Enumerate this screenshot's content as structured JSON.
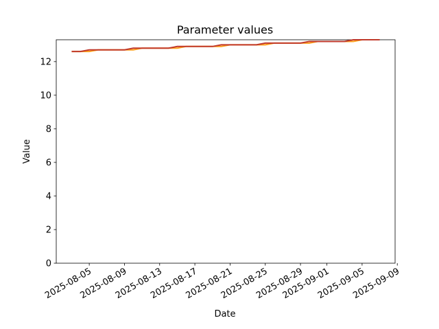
{
  "chart_data": {
    "type": "line",
    "title": "Parameter values",
    "x_label": "Date",
    "y_label": "Value",
    "x": [
      "2025-08-03",
      "2025-08-04",
      "2025-08-05",
      "2025-08-06",
      "2025-08-07",
      "2025-08-08",
      "2025-08-09",
      "2025-08-10",
      "2025-08-11",
      "2025-08-12",
      "2025-08-13",
      "2025-08-14",
      "2025-08-15",
      "2025-08-16",
      "2025-08-17",
      "2025-08-18",
      "2025-08-19",
      "2025-08-20",
      "2025-08-21",
      "2025-08-22",
      "2025-08-23",
      "2025-08-24",
      "2025-08-25",
      "2025-08-26",
      "2025-08-27",
      "2025-08-28",
      "2025-08-29",
      "2025-08-30",
      "2025-08-31",
      "2025-09-01",
      "2025-09-02",
      "2025-09-03",
      "2025-09-04",
      "2025-09-05",
      "2025-09-06",
      "2025-09-07"
    ],
    "series": [
      {
        "name": "orange",
        "color": "#ff9f1a",
        "values": [
          12.6,
          12.6,
          12.6,
          12.7,
          12.7,
          12.7,
          12.7,
          12.7,
          12.8,
          12.8,
          12.8,
          12.8,
          12.8,
          12.9,
          12.9,
          12.9,
          12.9,
          12.9,
          13.0,
          13.0,
          13.0,
          13.0,
          13.0,
          13.1,
          13.1,
          13.1,
          13.1,
          13.1,
          13.2,
          13.2,
          13.2,
          13.2,
          13.2,
          13.3,
          13.3,
          13.3
        ]
      },
      {
        "name": "red",
        "color": "#c0392b",
        "values": [
          12.6,
          12.6,
          12.7,
          12.7,
          12.7,
          12.7,
          12.7,
          12.8,
          12.8,
          12.8,
          12.8,
          12.8,
          12.9,
          12.9,
          12.9,
          12.9,
          12.9,
          13.0,
          13.0,
          13.0,
          13.0,
          13.0,
          13.1,
          13.1,
          13.1,
          13.1,
          13.1,
          13.2,
          13.2,
          13.2,
          13.2,
          13.2,
          13.3,
          13.3,
          13.3,
          13.3
        ]
      }
    ],
    "xlim": [
      "2025-08-01T06:00",
      "2025-09-08T18:00"
    ],
    "xticks": [
      "2025-08-05",
      "2025-08-09",
      "2025-08-13",
      "2025-08-17",
      "2025-08-21",
      "2025-08-25",
      "2025-08-29",
      "2025-09-01",
      "2025-09-05",
      "2025-09-09"
    ],
    "ylim": [
      0,
      13.3
    ],
    "yticks": [
      0,
      2,
      4,
      6,
      8,
      10,
      12
    ]
  }
}
